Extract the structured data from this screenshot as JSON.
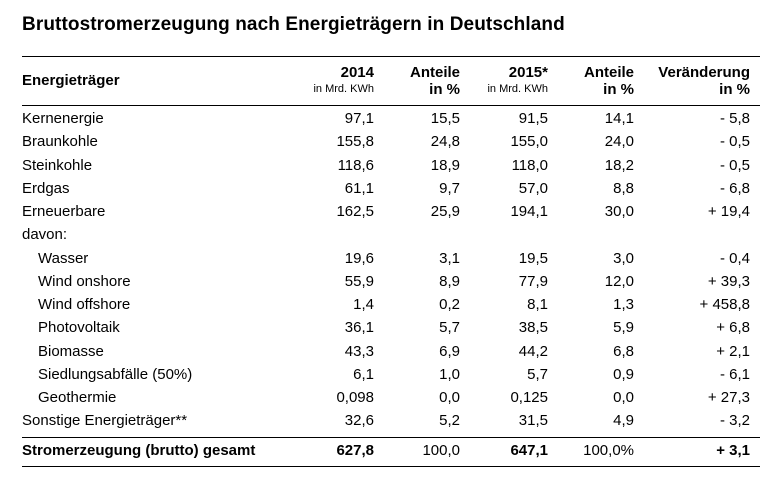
{
  "title": "Bruttostromerzeugung nach Energieträgern in Deutschland",
  "headers": {
    "energietraeger": "Energieträger",
    "y2014": "2014",
    "y2014_unit": "in Mrd. KWh",
    "anteile1_a": "Anteile",
    "anteile1_b": "in %",
    "y2015": "2015*",
    "y2015_unit": "in Mrd. KWh",
    "anteile2_a": "Anteile",
    "anteile2_b": "in %",
    "veraenderung_a": "Veränderung",
    "veraenderung_b": "in %"
  },
  "rows": [
    {
      "label": "Kernenergie",
      "v2014": "97,1",
      "a2014": "15,5",
      "v2015": "91,5",
      "a2015": "14,1",
      "change": "- 5,8"
    },
    {
      "label": "Braunkohle",
      "v2014": "155,8",
      "a2014": "24,8",
      "v2015": "155,0",
      "a2015": "24,0",
      "change": "- 0,5"
    },
    {
      "label": "Steinkohle",
      "v2014": "118,6",
      "a2014": "18,9",
      "v2015": "118,0",
      "a2015": "18,2",
      "change": "- 0,5"
    },
    {
      "label": "Erdgas",
      "v2014": "61,1",
      "a2014": "9,7",
      "v2015": "57,0",
      "a2015": "8,8",
      "change": "- 6,8"
    },
    {
      "label": "Erneuerbare",
      "v2014": "162,5",
      "a2014": "25,9",
      "v2015": "194,1",
      "a2015": "30,0",
      "change": "+ 19,4"
    },
    {
      "label": "davon:",
      "v2014": "",
      "a2014": "",
      "v2015": "",
      "a2015": "",
      "change": ""
    },
    {
      "label": "Wasser",
      "v2014": "19,6",
      "a2014": "3,1",
      "v2015": "19,5",
      "a2015": "3,0",
      "change": "- 0,4"
    },
    {
      "label": "Wind onshore",
      "v2014": "55,9",
      "a2014": "8,9",
      "v2015": "77,9",
      "a2015": "12,0",
      "change": "+ 39,3"
    },
    {
      "label": "Wind offshore",
      "v2014": "1,4",
      "a2014": "0,2",
      "v2015": "8,1",
      "a2015": "1,3",
      "change": "+ 458,8"
    },
    {
      "label": "Photovoltaik",
      "v2014": "36,1",
      "a2014": "5,7",
      "v2015": "38,5",
      "a2015": "5,9",
      "change": "+ 6,8"
    },
    {
      "label": "Biomasse",
      "v2014": "43,3",
      "a2014": "6,9",
      "v2015": "44,2",
      "a2015": "6,8",
      "change": "+ 2,1"
    },
    {
      "label": "Siedlungsabfälle (50%)",
      "v2014": "6,1",
      "a2014": "1,0",
      "v2015": "5,7",
      "a2015": "0,9",
      "change": "- 6,1"
    },
    {
      "label": "Geothermie",
      "v2014": "0,098",
      "a2014": "0,0",
      "v2015": "0,125",
      "a2015": "0,0",
      "change": "+ 27,3"
    },
    {
      "label": "Sonstige Energieträger**",
      "v2014": "32,6",
      "a2014": "5,2",
      "v2015": "31,5",
      "a2015": "4,9",
      "change": "- 3,2"
    }
  ],
  "total": {
    "label": "Stromerzeugung (brutto) gesamt",
    "v2014": "627,8",
    "a2014": "100,0",
    "v2015": "647,1",
    "a2015": "100,0%",
    "change": "+ 3,1"
  }
}
